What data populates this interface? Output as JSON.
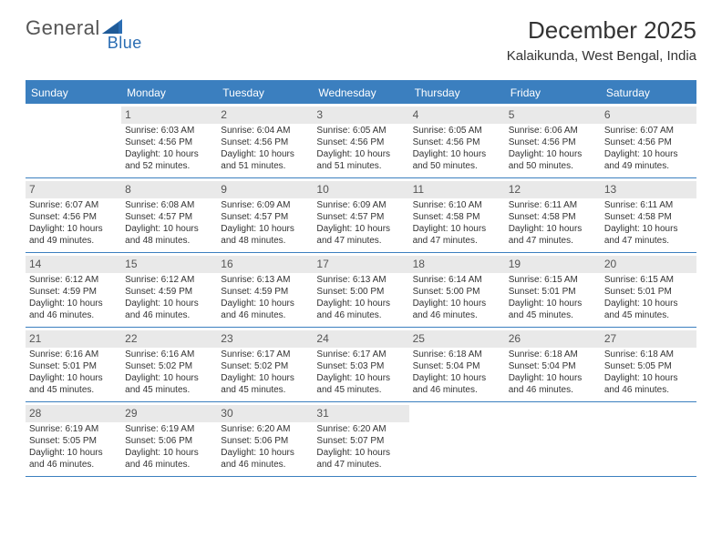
{
  "brand": {
    "name_part1": "General",
    "name_part2": "Blue"
  },
  "title": "December 2025",
  "location": "Kalaikunda, West Bengal, India",
  "colors": {
    "headerBar": "#3b7fbf",
    "dayNumBg": "#e9e9e9",
    "text": "#333333",
    "logoBlue": "#2a6db3"
  },
  "daysOfWeek": [
    "Sunday",
    "Monday",
    "Tuesday",
    "Wednesday",
    "Thursday",
    "Friday",
    "Saturday"
  ],
  "weeks": [
    [
      {
        "n": "",
        "sr": "",
        "ss": "",
        "dl": ""
      },
      {
        "n": "1",
        "sr": "Sunrise: 6:03 AM",
        "ss": "Sunset: 4:56 PM",
        "dl": "Daylight: 10 hours and 52 minutes."
      },
      {
        "n": "2",
        "sr": "Sunrise: 6:04 AM",
        "ss": "Sunset: 4:56 PM",
        "dl": "Daylight: 10 hours and 51 minutes."
      },
      {
        "n": "3",
        "sr": "Sunrise: 6:05 AM",
        "ss": "Sunset: 4:56 PM",
        "dl": "Daylight: 10 hours and 51 minutes."
      },
      {
        "n": "4",
        "sr": "Sunrise: 6:05 AM",
        "ss": "Sunset: 4:56 PM",
        "dl": "Daylight: 10 hours and 50 minutes."
      },
      {
        "n": "5",
        "sr": "Sunrise: 6:06 AM",
        "ss": "Sunset: 4:56 PM",
        "dl": "Daylight: 10 hours and 50 minutes."
      },
      {
        "n": "6",
        "sr": "Sunrise: 6:07 AM",
        "ss": "Sunset: 4:56 PM",
        "dl": "Daylight: 10 hours and 49 minutes."
      }
    ],
    [
      {
        "n": "7",
        "sr": "Sunrise: 6:07 AM",
        "ss": "Sunset: 4:56 PM",
        "dl": "Daylight: 10 hours and 49 minutes."
      },
      {
        "n": "8",
        "sr": "Sunrise: 6:08 AM",
        "ss": "Sunset: 4:57 PM",
        "dl": "Daylight: 10 hours and 48 minutes."
      },
      {
        "n": "9",
        "sr": "Sunrise: 6:09 AM",
        "ss": "Sunset: 4:57 PM",
        "dl": "Daylight: 10 hours and 48 minutes."
      },
      {
        "n": "10",
        "sr": "Sunrise: 6:09 AM",
        "ss": "Sunset: 4:57 PM",
        "dl": "Daylight: 10 hours and 47 minutes."
      },
      {
        "n": "11",
        "sr": "Sunrise: 6:10 AM",
        "ss": "Sunset: 4:58 PM",
        "dl": "Daylight: 10 hours and 47 minutes."
      },
      {
        "n": "12",
        "sr": "Sunrise: 6:11 AM",
        "ss": "Sunset: 4:58 PM",
        "dl": "Daylight: 10 hours and 47 minutes."
      },
      {
        "n": "13",
        "sr": "Sunrise: 6:11 AM",
        "ss": "Sunset: 4:58 PM",
        "dl": "Daylight: 10 hours and 47 minutes."
      }
    ],
    [
      {
        "n": "14",
        "sr": "Sunrise: 6:12 AM",
        "ss": "Sunset: 4:59 PM",
        "dl": "Daylight: 10 hours and 46 minutes."
      },
      {
        "n": "15",
        "sr": "Sunrise: 6:12 AM",
        "ss": "Sunset: 4:59 PM",
        "dl": "Daylight: 10 hours and 46 minutes."
      },
      {
        "n": "16",
        "sr": "Sunrise: 6:13 AM",
        "ss": "Sunset: 4:59 PM",
        "dl": "Daylight: 10 hours and 46 minutes."
      },
      {
        "n": "17",
        "sr": "Sunrise: 6:13 AM",
        "ss": "Sunset: 5:00 PM",
        "dl": "Daylight: 10 hours and 46 minutes."
      },
      {
        "n": "18",
        "sr": "Sunrise: 6:14 AM",
        "ss": "Sunset: 5:00 PM",
        "dl": "Daylight: 10 hours and 46 minutes."
      },
      {
        "n": "19",
        "sr": "Sunrise: 6:15 AM",
        "ss": "Sunset: 5:01 PM",
        "dl": "Daylight: 10 hours and 45 minutes."
      },
      {
        "n": "20",
        "sr": "Sunrise: 6:15 AM",
        "ss": "Sunset: 5:01 PM",
        "dl": "Daylight: 10 hours and 45 minutes."
      }
    ],
    [
      {
        "n": "21",
        "sr": "Sunrise: 6:16 AM",
        "ss": "Sunset: 5:01 PM",
        "dl": "Daylight: 10 hours and 45 minutes."
      },
      {
        "n": "22",
        "sr": "Sunrise: 6:16 AM",
        "ss": "Sunset: 5:02 PM",
        "dl": "Daylight: 10 hours and 45 minutes."
      },
      {
        "n": "23",
        "sr": "Sunrise: 6:17 AM",
        "ss": "Sunset: 5:02 PM",
        "dl": "Daylight: 10 hours and 45 minutes."
      },
      {
        "n": "24",
        "sr": "Sunrise: 6:17 AM",
        "ss": "Sunset: 5:03 PM",
        "dl": "Daylight: 10 hours and 45 minutes."
      },
      {
        "n": "25",
        "sr": "Sunrise: 6:18 AM",
        "ss": "Sunset: 5:04 PM",
        "dl": "Daylight: 10 hours and 46 minutes."
      },
      {
        "n": "26",
        "sr": "Sunrise: 6:18 AM",
        "ss": "Sunset: 5:04 PM",
        "dl": "Daylight: 10 hours and 46 minutes."
      },
      {
        "n": "27",
        "sr": "Sunrise: 6:18 AM",
        "ss": "Sunset: 5:05 PM",
        "dl": "Daylight: 10 hours and 46 minutes."
      }
    ],
    [
      {
        "n": "28",
        "sr": "Sunrise: 6:19 AM",
        "ss": "Sunset: 5:05 PM",
        "dl": "Daylight: 10 hours and 46 minutes."
      },
      {
        "n": "29",
        "sr": "Sunrise: 6:19 AM",
        "ss": "Sunset: 5:06 PM",
        "dl": "Daylight: 10 hours and 46 minutes."
      },
      {
        "n": "30",
        "sr": "Sunrise: 6:20 AM",
        "ss": "Sunset: 5:06 PM",
        "dl": "Daylight: 10 hours and 46 minutes."
      },
      {
        "n": "31",
        "sr": "Sunrise: 6:20 AM",
        "ss": "Sunset: 5:07 PM",
        "dl": "Daylight: 10 hours and 47 minutes."
      },
      {
        "n": "",
        "sr": "",
        "ss": "",
        "dl": ""
      },
      {
        "n": "",
        "sr": "",
        "ss": "",
        "dl": ""
      },
      {
        "n": "",
        "sr": "",
        "ss": "",
        "dl": ""
      }
    ]
  ]
}
